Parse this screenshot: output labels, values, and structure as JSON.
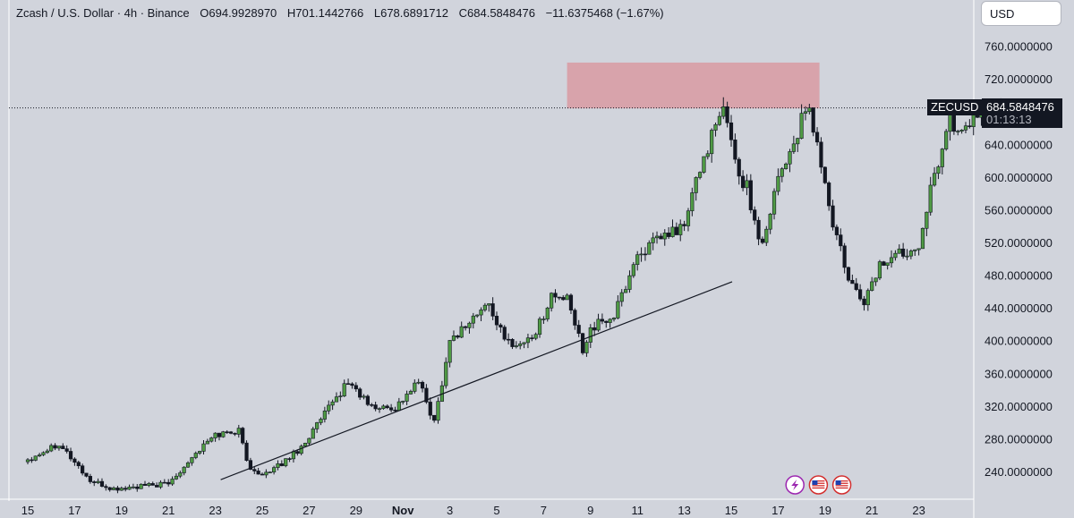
{
  "header": {
    "symbol_title": "Zcash / U.S. Dollar · 4h · Binance",
    "open": "O694.9928970",
    "high": "H701.1442766",
    "low": "L678.6891712",
    "close": "C684.5848476",
    "change": "−11.6375468 (−1.67%)"
  },
  "toolbar": {
    "currency_label": "USD"
  },
  "last_price": {
    "symbol": "ZECUSD",
    "value": "684.5848476",
    "countdown": "01:13:13"
  },
  "colors": {
    "up": "#4f9a44",
    "down": "#131722",
    "zone": "#d99aa2",
    "background": "#d1d4dc"
  },
  "chart_data": {
    "type": "candlestick",
    "x_labels": [
      "15",
      "17",
      "19",
      "21",
      "23",
      "25",
      "27",
      "29",
      "Nov",
      "3",
      "5",
      "7",
      "9",
      "11",
      "13",
      "15",
      "17",
      "19",
      "21",
      "23"
    ],
    "y_ticks": [
      "240.0000000",
      "280.0000000",
      "320.0000000",
      "360.0000000",
      "400.0000000",
      "440.0000000",
      "480.0000000",
      "520.0000000",
      "560.0000000",
      "600.0000000",
      "640.0000000",
      "680.0000000",
      "720.0000000",
      "760.0000000"
    ],
    "ylim": [
      210,
      780
    ],
    "last_close": 684.5848476,
    "resistance_zone": {
      "from": "Nov 7",
      "to": "Nov 17",
      "low": 684,
      "high": 740
    },
    "trendline": {
      "start": [
        "Oct 23",
        230
      ],
      "end": [
        "Nov 14",
        472
      ]
    },
    "events": [
      {
        "label": "flash-event-icon",
        "x": "Nov 15"
      },
      {
        "label": "us-flag-icon",
        "x": "Nov 16"
      },
      {
        "label": "us-flag-icon",
        "x": "Nov 17"
      }
    ],
    "anchors": [
      [
        0,
        255
      ],
      [
        8,
        275
      ],
      [
        16,
        228
      ],
      [
        22,
        218
      ],
      [
        30,
        222
      ],
      [
        36,
        225
      ],
      [
        42,
        258
      ],
      [
        48,
        285
      ],
      [
        54,
        290
      ],
      [
        57,
        240
      ],
      [
        62,
        238
      ],
      [
        70,
        270
      ],
      [
        76,
        310
      ],
      [
        82,
        350
      ],
      [
        88,
        318
      ],
      [
        94,
        318
      ],
      [
        100,
        350
      ],
      [
        104,
        300
      ],
      [
        108,
        400
      ],
      [
        114,
        428
      ],
      [
        118,
        445
      ],
      [
        122,
        400
      ],
      [
        126,
        395
      ],
      [
        130,
        410
      ],
      [
        134,
        455
      ],
      [
        138,
        450
      ],
      [
        142,
        390
      ],
      [
        144,
        415
      ],
      [
        150,
        430
      ],
      [
        156,
        505
      ],
      [
        162,
        525
      ],
      [
        168,
        540
      ],
      [
        171,
        595
      ],
      [
        174,
        638
      ],
      [
        176,
        660
      ],
      [
        178,
        680
      ],
      [
        180,
        650
      ],
      [
        182,
        600
      ],
      [
        184,
        588
      ],
      [
        186,
        545
      ],
      [
        188,
        518
      ],
      [
        190,
        562
      ],
      [
        192,
        602
      ],
      [
        196,
        640
      ],
      [
        198,
        668
      ],
      [
        200,
        680
      ],
      [
        202,
        640
      ],
      [
        206,
        540
      ],
      [
        208,
        512
      ],
      [
        210,
        470
      ],
      [
        212,
        460
      ],
      [
        214,
        448
      ],
      [
        216,
        470
      ],
      [
        218,
        492
      ],
      [
        222,
        505
      ],
      [
        226,
        512
      ],
      [
        228,
        520
      ],
      [
        230,
        565
      ],
      [
        232,
        600
      ],
      [
        234,
        640
      ],
      [
        236,
        672
      ],
      [
        238,
        650
      ],
      [
        240,
        663
      ],
      [
        242,
        675
      ],
      [
        244,
        678
      ],
      [
        246,
        682
      ],
      [
        248,
        688
      ],
      [
        250,
        685
      ]
    ]
  }
}
